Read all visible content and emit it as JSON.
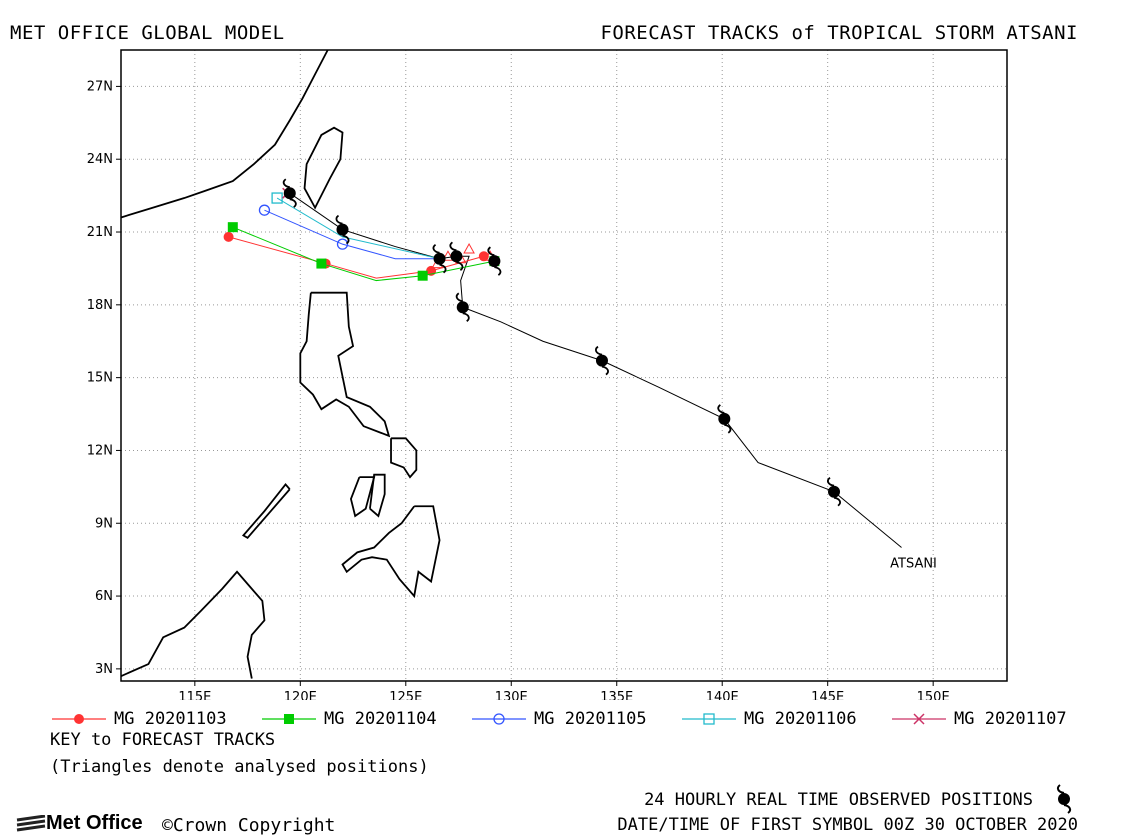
{
  "header": {
    "left_title": "MET OFFICE GLOBAL MODEL",
    "right_title": "FORECAST TRACKS of TROPICAL STORM ATSANI"
  },
  "chart_data": {
    "type": "map-tracks",
    "x_axis": {
      "range": [
        111.5,
        153.5
      ],
      "ticks": [
        115,
        120,
        125,
        130,
        135,
        140,
        145,
        150
      ],
      "tick_labels": [
        "115E",
        "120E",
        "125E",
        "130E",
        "135E",
        "140E",
        "145E",
        "150E"
      ]
    },
    "y_axis": {
      "range": [
        2.5,
        28.5
      ],
      "ticks": [
        3,
        6,
        9,
        12,
        15,
        18,
        21,
        24,
        27
      ],
      "tick_labels": [
        "3N",
        "6N",
        "9N",
        "12N",
        "15N",
        "18N",
        "21N",
        "24N",
        "27N"
      ]
    },
    "grid": true,
    "storm_label": "ATSANI",
    "observed_track": [
      [
        148.5,
        8.0
      ],
      [
        145.3,
        10.3
      ],
      [
        141.7,
        11.5
      ],
      [
        140.1,
        13.3
      ],
      [
        137.0,
        14.6
      ],
      [
        134.3,
        15.7
      ],
      [
        131.5,
        16.5
      ],
      [
        129.5,
        17.3
      ],
      [
        127.7,
        17.9
      ],
      [
        127.6,
        19.0
      ],
      [
        128.0,
        20.0
      ],
      [
        127.4,
        20.0
      ],
      [
        126.6,
        19.9
      ],
      [
        124.5,
        20.4
      ],
      [
        122.0,
        21.1
      ],
      [
        119.5,
        22.6
      ]
    ],
    "observed_symbols": [
      [
        145.3,
        10.3
      ],
      [
        140.1,
        13.3
      ],
      [
        134.3,
        15.7
      ],
      [
        127.7,
        17.9
      ],
      [
        129.2,
        19.8
      ],
      [
        127.4,
        20.0
      ],
      [
        126.6,
        19.9
      ],
      [
        122.0,
        21.1
      ],
      [
        119.5,
        22.6
      ]
    ],
    "series": [
      {
        "name": "MG 20201103",
        "color": "#ff3333",
        "marker": "circle-filled",
        "points": [
          [
            128.7,
            20.0
          ],
          [
            126.2,
            19.4
          ],
          [
            123.6,
            19.1
          ],
          [
            121.2,
            19.7
          ],
          [
            116.6,
            20.8
          ]
        ],
        "marked": [
          [
            128.7,
            20.0
          ],
          [
            126.2,
            19.4
          ],
          [
            121.2,
            19.7
          ],
          [
            116.6,
            20.8
          ]
        ]
      },
      {
        "name": "MG 20201104",
        "color": "#00cc00",
        "marker": "square-filled",
        "points": [
          [
            129.2,
            19.8
          ],
          [
            125.8,
            19.2
          ],
          [
            123.6,
            19.0
          ],
          [
            121.0,
            19.7
          ],
          [
            116.8,
            21.2
          ]
        ],
        "marked": [
          [
            129.2,
            19.8
          ],
          [
            125.8,
            19.2
          ],
          [
            121.0,
            19.7
          ],
          [
            116.8,
            21.2
          ]
        ]
      },
      {
        "name": "MG 20201105",
        "color": "#3355ff",
        "marker": "circle-open",
        "points": [
          [
            126.6,
            19.9
          ],
          [
            124.5,
            19.9
          ],
          [
            122.0,
            20.5
          ],
          [
            118.3,
            21.9
          ]
        ],
        "marked": [
          [
            126.6,
            19.9
          ],
          [
            122.0,
            20.5
          ],
          [
            118.3,
            21.9
          ]
        ]
      },
      {
        "name": "MG 20201106",
        "color": "#22bbcc",
        "marker": "square-open",
        "points": [
          [
            126.6,
            19.9
          ],
          [
            122.0,
            20.8
          ],
          [
            118.9,
            22.4
          ]
        ],
        "marked": [
          [
            118.9,
            22.4
          ]
        ]
      },
      {
        "name": "MG 20201107",
        "color": "#cc3366",
        "marker": "x",
        "points": [
          [
            119.4,
            22.6
          ]
        ],
        "marked": [
          [
            119.4,
            22.6
          ]
        ]
      }
    ],
    "analysed_triangles": [
      [
        128.0,
        20.3
      ],
      [
        127.0,
        20.0
      ],
      [
        129.0,
        20.0
      ],
      [
        126.5,
        19.7
      ],
      [
        127.6,
        19.9
      ]
    ],
    "coastlines": [
      [
        [
          111.5,
          21.6
        ],
        [
          113.0,
          22.0
        ],
        [
          114.5,
          22.4
        ],
        [
          115.5,
          22.7
        ],
        [
          116.8,
          23.1
        ],
        [
          117.8,
          23.8
        ],
        [
          118.8,
          24.6
        ],
        [
          119.5,
          25.6
        ],
        [
          120.1,
          26.5
        ],
        [
          120.7,
          27.5
        ],
        [
          121.3,
          28.5
        ]
      ],
      [
        [
          121.9,
          24.0
        ],
        [
          122.0,
          25.1
        ],
        [
          121.6,
          25.3
        ],
        [
          121.0,
          25.0
        ],
        [
          120.3,
          23.8
        ],
        [
          120.2,
          22.8
        ],
        [
          120.7,
          22.0
        ],
        [
          121.4,
          23.2
        ],
        [
          121.9,
          24.0
        ]
      ],
      [
        [
          120.5,
          18.5
        ],
        [
          121.3,
          18.5
        ],
        [
          122.2,
          18.5
        ],
        [
          122.3,
          17.1
        ],
        [
          122.5,
          16.3
        ],
        [
          121.8,
          15.9
        ],
        [
          122.2,
          14.2
        ],
        [
          123.3,
          13.8
        ],
        [
          124.0,
          13.2
        ],
        [
          124.2,
          12.6
        ],
        [
          123.0,
          13.0
        ],
        [
          122.3,
          13.8
        ],
        [
          121.7,
          14.1
        ],
        [
          121.0,
          13.7
        ],
        [
          120.6,
          14.3
        ],
        [
          120.0,
          14.8
        ],
        [
          120.0,
          16.0
        ],
        [
          120.3,
          16.5
        ],
        [
          120.4,
          17.6
        ],
        [
          120.5,
          18.5
        ]
      ],
      [
        [
          119.5,
          10.4
        ],
        [
          118.5,
          9.4
        ],
        [
          117.5,
          8.4
        ],
        [
          117.3,
          8.5
        ],
        [
          118.3,
          9.5
        ],
        [
          119.3,
          10.6
        ],
        [
          119.5,
          10.4
        ]
      ],
      [
        [
          124.3,
          12.5
        ],
        [
          125.0,
          12.5
        ],
        [
          125.5,
          12.0
        ],
        [
          125.5,
          11.2
        ],
        [
          125.2,
          10.9
        ],
        [
          124.9,
          11.3
        ],
        [
          124.3,
          11.5
        ],
        [
          124.3,
          12.5
        ]
      ],
      [
        [
          122.8,
          10.9
        ],
        [
          123.5,
          10.9
        ],
        [
          123.1,
          9.6
        ],
        [
          122.6,
          9.3
        ],
        [
          122.4,
          10.0
        ],
        [
          122.8,
          10.9
        ]
      ],
      [
        [
          123.3,
          9.6
        ],
        [
          123.5,
          11.0
        ],
        [
          124.0,
          11.0
        ],
        [
          124.0,
          10.2
        ],
        [
          123.7,
          9.3
        ],
        [
          123.3,
          9.6
        ]
      ],
      [
        [
          125.4,
          9.7
        ],
        [
          126.3,
          9.7
        ],
        [
          126.6,
          8.3
        ],
        [
          126.2,
          6.6
        ],
        [
          125.6,
          7.0
        ],
        [
          125.4,
          6.0
        ],
        [
          124.7,
          6.7
        ],
        [
          124.1,
          7.5
        ],
        [
          123.4,
          7.6
        ],
        [
          122.9,
          7.5
        ],
        [
          122.2,
          7.0
        ],
        [
          122.0,
          7.3
        ],
        [
          122.7,
          7.8
        ],
        [
          123.5,
          8.0
        ],
        [
          124.2,
          8.6
        ],
        [
          124.8,
          9.0
        ],
        [
          125.4,
          9.7
        ]
      ],
      [
        [
          111.5,
          2.7
        ],
        [
          112.8,
          3.2
        ],
        [
          113.5,
          4.3
        ],
        [
          114.5,
          4.7
        ],
        [
          115.3,
          5.4
        ],
        [
          116.3,
          6.3
        ],
        [
          117.0,
          7.0
        ],
        [
          117.6,
          6.4
        ],
        [
          118.2,
          5.8
        ],
        [
          118.3,
          5.0
        ],
        [
          117.7,
          4.4
        ],
        [
          117.5,
          3.5
        ],
        [
          117.7,
          2.6
        ]
      ]
    ]
  },
  "legend": {
    "items": [
      {
        "label": "MG 20201103",
        "color": "#ff3333",
        "marker": "circle-filled"
      },
      {
        "label": "MG 20201104",
        "color": "#00cc00",
        "marker": "square-filled"
      },
      {
        "label": "MG 20201105",
        "color": "#3355ff",
        "marker": "circle-open"
      },
      {
        "label": "MG 20201106",
        "color": "#22bbcc",
        "marker": "square-open"
      },
      {
        "label": "MG 20201107",
        "color": "#cc3366",
        "marker": "x"
      }
    ],
    "key_title": "KEY to FORECAST TRACKS",
    "key_note": "(Triangles denote analysed positions)"
  },
  "footer": {
    "observed_label": "24 HOURLY REAL TIME OBSERVED POSITIONS",
    "datetime_label": "DATE/TIME OF FIRST SYMBOL 00Z 30 OCTOBER 2020",
    "logo_text": "Met Office",
    "copyright": "Crown Copyright",
    "copyright_symbol": "©",
    "storm_icon": "tropical-storm-icon"
  }
}
